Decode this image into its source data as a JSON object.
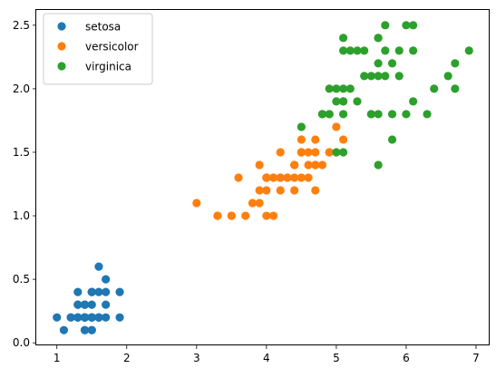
{
  "chart_data": {
    "type": "scatter",
    "title": "",
    "xlabel": "",
    "ylabel": "",
    "xlim": [
      0.705,
      7.195
    ],
    "ylim": [
      -0.02,
      2.62
    ],
    "xticks": [
      1,
      2,
      3,
      4,
      5,
      6,
      7
    ],
    "xtick_labels": [
      "1",
      "2",
      "3",
      "4",
      "5",
      "6",
      "7"
    ],
    "yticks": [
      0.0,
      0.5,
      1.0,
      1.5,
      2.0,
      2.5
    ],
    "ytick_labels": [
      "0.0",
      "0.5",
      "1.0",
      "1.5",
      "2.0",
      "2.5"
    ],
    "grid": false,
    "legend_position": "upper-left",
    "series": [
      {
        "name": "setosa",
        "color": "#1f77b4",
        "points": [
          [
            1.4,
            0.2
          ],
          [
            1.4,
            0.2
          ],
          [
            1.3,
            0.2
          ],
          [
            1.5,
            0.2
          ],
          [
            1.4,
            0.2
          ],
          [
            1.7,
            0.4
          ],
          [
            1.4,
            0.3
          ],
          [
            1.5,
            0.2
          ],
          [
            1.4,
            0.2
          ],
          [
            1.5,
            0.1
          ],
          [
            1.5,
            0.2
          ],
          [
            1.6,
            0.2
          ],
          [
            1.4,
            0.1
          ],
          [
            1.1,
            0.1
          ],
          [
            1.2,
            0.2
          ],
          [
            1.5,
            0.4
          ],
          [
            1.3,
            0.4
          ],
          [
            1.4,
            0.3
          ],
          [
            1.7,
            0.3
          ],
          [
            1.5,
            0.3
          ],
          [
            1.7,
            0.2
          ],
          [
            1.5,
            0.4
          ],
          [
            1.0,
            0.2
          ],
          [
            1.7,
            0.5
          ],
          [
            1.9,
            0.2
          ],
          [
            1.6,
            0.2
          ],
          [
            1.6,
            0.4
          ],
          [
            1.5,
            0.2
          ],
          [
            1.4,
            0.2
          ],
          [
            1.6,
            0.2
          ],
          [
            1.6,
            0.2
          ],
          [
            1.5,
            0.4
          ],
          [
            1.5,
            0.1
          ],
          [
            1.4,
            0.2
          ],
          [
            1.5,
            0.2
          ],
          [
            1.2,
            0.2
          ],
          [
            1.3,
            0.2
          ],
          [
            1.4,
            0.1
          ],
          [
            1.3,
            0.2
          ],
          [
            1.5,
            0.2
          ],
          [
            1.3,
            0.3
          ],
          [
            1.3,
            0.3
          ],
          [
            1.3,
            0.2
          ],
          [
            1.6,
            0.6
          ],
          [
            1.9,
            0.4
          ],
          [
            1.4,
            0.3
          ],
          [
            1.6,
            0.2
          ],
          [
            1.4,
            0.2
          ],
          [
            1.5,
            0.2
          ],
          [
            1.4,
            0.2
          ]
        ]
      },
      {
        "name": "versicolor",
        "color": "#ff7f0e",
        "points": [
          [
            4.7,
            1.4
          ],
          [
            4.5,
            1.5
          ],
          [
            4.9,
            1.5
          ],
          [
            4.0,
            1.3
          ],
          [
            4.6,
            1.5
          ],
          [
            4.5,
            1.3
          ],
          [
            4.7,
            1.6
          ],
          [
            3.3,
            1.0
          ],
          [
            4.6,
            1.3
          ],
          [
            3.9,
            1.4
          ],
          [
            3.5,
            1.0
          ],
          [
            4.2,
            1.5
          ],
          [
            4.0,
            1.0
          ],
          [
            4.7,
            1.4
          ],
          [
            3.6,
            1.3
          ],
          [
            4.4,
            1.4
          ],
          [
            4.5,
            1.5
          ],
          [
            4.1,
            1.0
          ],
          [
            4.5,
            1.5
          ],
          [
            3.9,
            1.1
          ],
          [
            4.8,
            1.8
          ],
          [
            4.0,
            1.3
          ],
          [
            4.9,
            1.5
          ],
          [
            4.7,
            1.2
          ],
          [
            4.3,
            1.3
          ],
          [
            4.4,
            1.4
          ],
          [
            4.8,
            1.4
          ],
          [
            5.0,
            1.7
          ],
          [
            4.5,
            1.5
          ],
          [
            3.5,
            1.0
          ],
          [
            3.8,
            1.1
          ],
          [
            3.7,
            1.0
          ],
          [
            3.9,
            1.2
          ],
          [
            5.1,
            1.6
          ],
          [
            4.5,
            1.5
          ],
          [
            4.5,
            1.6
          ],
          [
            4.7,
            1.5
          ],
          [
            4.4,
            1.3
          ],
          [
            4.1,
            1.3
          ],
          [
            4.0,
            1.3
          ],
          [
            4.4,
            1.2
          ],
          [
            4.6,
            1.4
          ],
          [
            4.0,
            1.2
          ],
          [
            3.3,
            1.0
          ],
          [
            4.2,
            1.3
          ],
          [
            4.2,
            1.2
          ],
          [
            4.2,
            1.3
          ],
          [
            4.3,
            1.3
          ],
          [
            3.0,
            1.1
          ],
          [
            4.1,
            1.3
          ]
        ]
      },
      {
        "name": "virginica",
        "color": "#2ca02c",
        "points": [
          [
            6.0,
            2.5
          ],
          [
            5.1,
            1.9
          ],
          [
            5.9,
            2.1
          ],
          [
            5.6,
            1.8
          ],
          [
            5.8,
            2.2
          ],
          [
            6.6,
            2.1
          ],
          [
            4.5,
            1.7
          ],
          [
            6.3,
            1.8
          ],
          [
            5.8,
            1.8
          ],
          [
            6.1,
            2.5
          ],
          [
            5.1,
            2.0
          ],
          [
            5.3,
            1.9
          ],
          [
            5.5,
            2.1
          ],
          [
            5.0,
            2.0
          ],
          [
            5.1,
            2.4
          ],
          [
            5.3,
            2.3
          ],
          [
            5.5,
            1.8
          ],
          [
            6.7,
            2.2
          ],
          [
            6.9,
            2.3
          ],
          [
            5.0,
            1.5
          ],
          [
            5.7,
            2.3
          ],
          [
            4.9,
            2.0
          ],
          [
            6.7,
            2.0
          ],
          [
            4.9,
            1.8
          ],
          [
            5.7,
            2.1
          ],
          [
            6.0,
            1.8
          ],
          [
            4.8,
            1.8
          ],
          [
            4.9,
            1.8
          ],
          [
            5.6,
            2.1
          ],
          [
            5.8,
            1.6
          ],
          [
            6.1,
            1.9
          ],
          [
            6.4,
            2.0
          ],
          [
            5.6,
            2.2
          ],
          [
            5.1,
            1.5
          ],
          [
            5.6,
            1.4
          ],
          [
            6.1,
            2.3
          ],
          [
            5.6,
            2.4
          ],
          [
            5.5,
            1.8
          ],
          [
            4.8,
            1.8
          ],
          [
            5.4,
            2.1
          ],
          [
            5.6,
            2.4
          ],
          [
            5.1,
            2.3
          ],
          [
            5.1,
            1.9
          ],
          [
            5.9,
            2.3
          ],
          [
            5.7,
            2.5
          ],
          [
            5.2,
            2.3
          ],
          [
            5.0,
            1.9
          ],
          [
            5.2,
            2.0
          ],
          [
            5.4,
            2.3
          ],
          [
            5.1,
            1.8
          ]
        ]
      }
    ]
  }
}
